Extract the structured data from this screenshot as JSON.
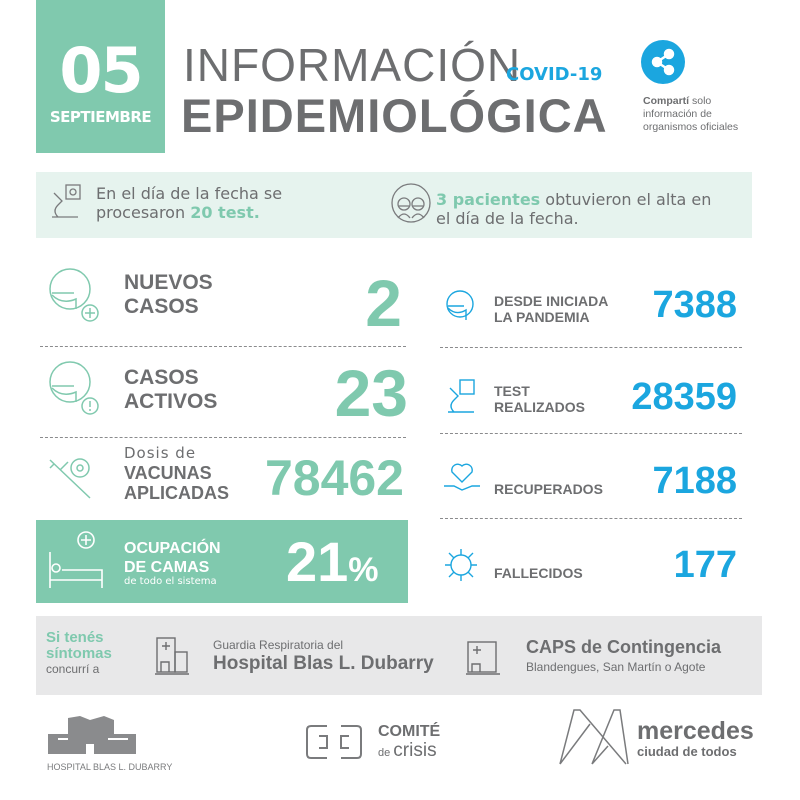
{
  "header": {
    "day": "05",
    "month": "SEPTIEMBRE",
    "title_line1": "INFORMACIÓN",
    "tag": "COVID-19",
    "title_line2": "EPIDEMIOLÓGICA",
    "share": {
      "icon": "share-icon",
      "bold": "Compartí",
      "rest1": " solo",
      "rest2": "información de",
      "rest3": "organismos oficiales"
    }
  },
  "summary": {
    "tests_pre": "En el día de la fecha se",
    "tests_mid": "procesaron ",
    "tests_value": "20 test.",
    "discharges_value": "3 pacientes",
    "discharges_post1": " obtuvieron el alta en",
    "discharges_post2": "el día de la fecha."
  },
  "left_stats": {
    "new_cases": {
      "label1": "NUEVOS",
      "label2": "CASOS",
      "value": "2"
    },
    "active_cases": {
      "label1": "CASOS",
      "label2": "ACTIVOS",
      "value": "23"
    },
    "vaccines": {
      "pre": "Dosis de",
      "label1": "VACUNAS",
      "label2": "APLICADAS",
      "value": "78462"
    },
    "beds": {
      "label1": "OCUPACIÓN",
      "label2": "DE CAMAS",
      "sub": "de todo el sistema",
      "value": "21",
      "unit": "%",
      "percent": 21
    }
  },
  "right_stats": [
    {
      "label1": "DESDE INICIADA",
      "label2": "LA PANDEMIA",
      "value": "7388"
    },
    {
      "label1": "TEST",
      "label2": "REALIZADOS",
      "value": "28359"
    },
    {
      "label1": "RECUPERADOS",
      "label2": "",
      "value": "7188"
    },
    {
      "label1": "FALLECIDOS",
      "label2": "",
      "value": "177"
    }
  ],
  "symptoms": {
    "line1": "Si tenés",
    "line2": "síntomas",
    "line3": "concurrí a",
    "hospital_pre": "Guardia Respiratoria del",
    "hospital_name": "Hospital Blas L. Dubarry",
    "caps_title": "CAPS de Contingencia",
    "caps_sub": "Blandengues, San Martín o Agote"
  },
  "footer": {
    "hospital_logo": "HOSPITAL BLAS L. DUBARRY",
    "comite1": "COMITÉ",
    "comite2a": "de ",
    "comite2b": "crisis",
    "mercedes1": "mercedes",
    "mercedes2": "ciudad de todos"
  },
  "colors": {
    "green": "#80c9ae",
    "blue": "#1ba6df",
    "grey": "#6d6e70",
    "band": "#e6f3ee",
    "grey_band": "#e8e8e9"
  }
}
